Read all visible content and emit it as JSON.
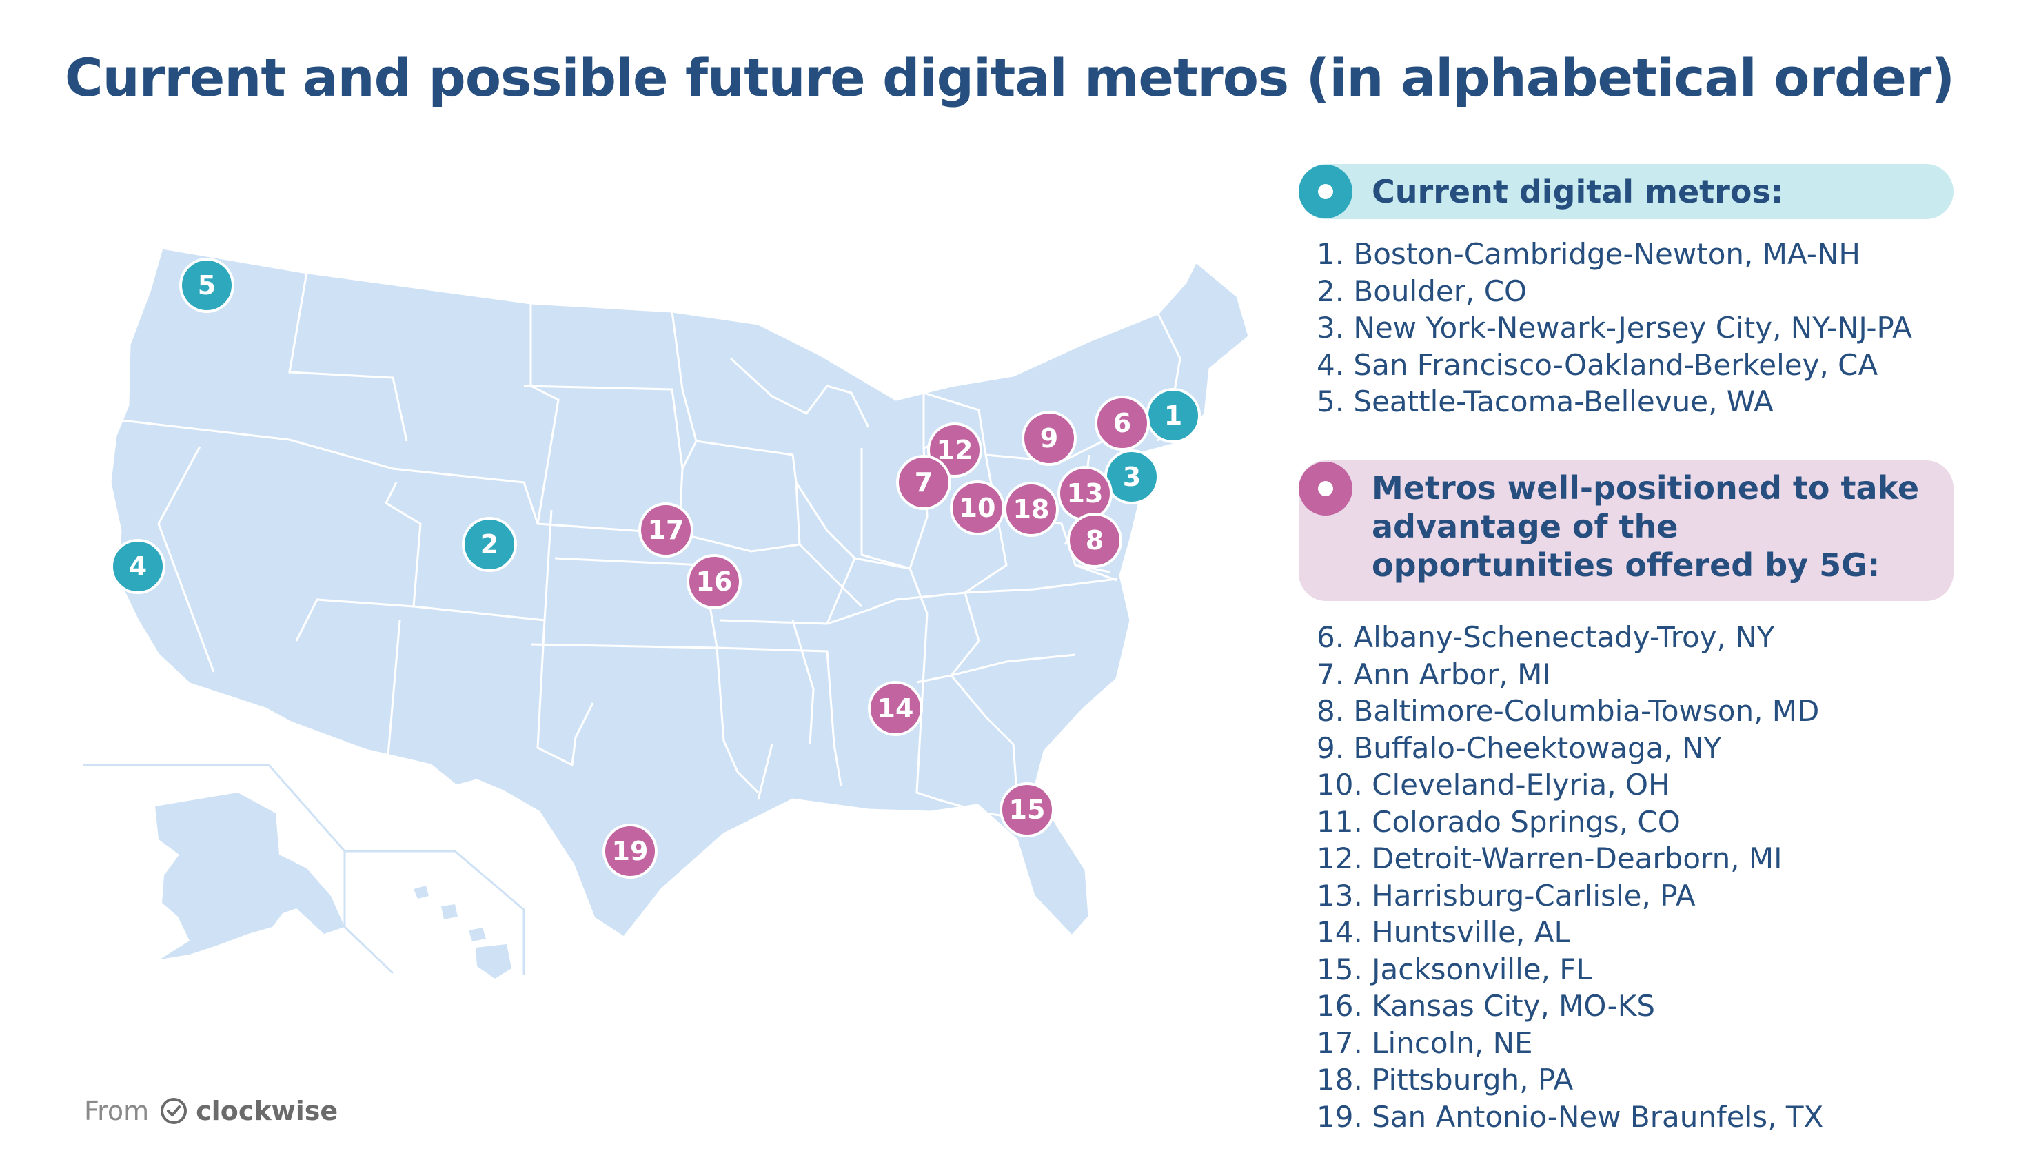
{
  "title": "Current and possible future digital metros (in alphabetical order)",
  "colors": {
    "current": "#2ea8bd",
    "future": "#c2649f",
    "land": "#cfe2f5",
    "title": "#264f7f"
  },
  "legend": {
    "current_header": "Current digital metros:",
    "future_header": "Metros well-positioned to take advantage of the opportunities offered by 5G:"
  },
  "current_metros": [
    "1. Boston-Cambridge-Newton, MA-NH",
    "2. Boulder, CO",
    "3. New York-Newark-Jersey City, NY-NJ-PA",
    "4. San Francisco-Oakland-Berkeley, CA",
    "5. Seattle-Tacoma-Bellevue, WA"
  ],
  "future_metros": [
    "6. Albany-Schenectady-Troy, NY",
    "7. Ann Arbor, MI",
    "8. Baltimore-Columbia-Towson, MD",
    "9. Buffalo-Cheektowaga, NY",
    "10. Cleveland-Elyria, OH",
    "11. Colorado Springs, CO",
    "12. Detroit-Warren-Dearborn, MI",
    "13. Harrisburg-Carlisle, PA",
    "14. Huntsville, AL",
    "15. Jacksonville, FL",
    "16. Kansas City, MO-KS",
    "17. Lincoln, NE",
    "18. Pittsburgh, PA",
    "19. San Antonio-New Braunfels, TX"
  ],
  "markers": {
    "m1": "1",
    "m2": "2",
    "m3": "3",
    "m4": "4",
    "m5": "5",
    "m6": "6",
    "m7": "7",
    "m8": "8",
    "m9": "9",
    "m10": "10",
    "m12": "12",
    "m13": "13",
    "m14": "14",
    "m15": "15",
    "m16": "16",
    "m17": "17",
    "m18": "18",
    "m19": "19"
  },
  "footer": {
    "from": "From",
    "brand": "clockwise",
    "icon": "clock-check-icon"
  }
}
